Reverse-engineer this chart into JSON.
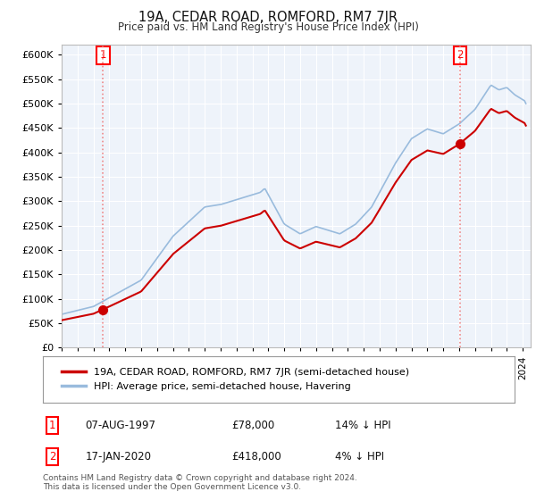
{
  "title": "19A, CEDAR ROAD, ROMFORD, RM7 7JR",
  "subtitle": "Price paid vs. HM Land Registry's House Price Index (HPI)",
  "legend_line1": "19A, CEDAR ROAD, ROMFORD, RM7 7JR (semi-detached house)",
  "legend_line2": "HPI: Average price, semi-detached house, Havering",
  "footnote": "Contains HM Land Registry data © Crown copyright and database right 2024.\nThis data is licensed under the Open Government Licence v3.0.",
  "transaction1_date": "07-AUG-1997",
  "transaction1_price": "£78,000",
  "transaction1_hpi": "14% ↓ HPI",
  "transaction1_year": 1997.6,
  "transaction1_value": 78000,
  "transaction2_date": "17-JAN-2020",
  "transaction2_price": "£418,000",
  "transaction2_hpi": "4% ↓ HPI",
  "transaction2_year": 2020.05,
  "transaction2_value": 418000,
  "price_color": "#cc0000",
  "hpi_color": "#99bbdd",
  "marker_color": "#cc0000",
  "vline_color": "#ee8888",
  "ylim_min": 0,
  "ylim_max": 620000,
  "yticks": [
    0,
    50000,
    100000,
    150000,
    200000,
    250000,
    300000,
    350000,
    400000,
    450000,
    500000,
    550000,
    600000
  ],
  "background_color": "#ffffff",
  "plot_bg_color": "#eef3fa",
  "grid_color": "#ffffff"
}
